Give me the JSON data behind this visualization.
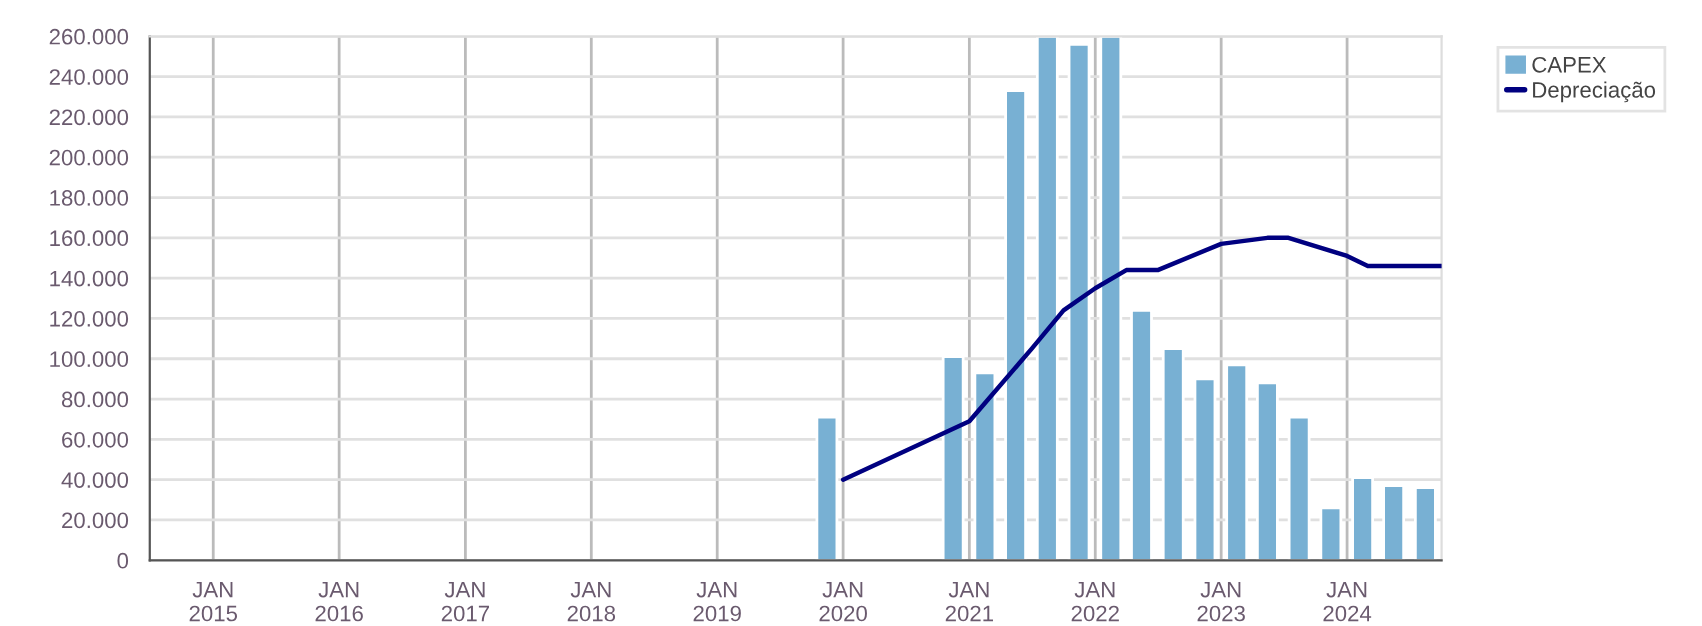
{
  "chart_data": {
    "type": "bar",
    "x": [
      "2019-11-15",
      "2020-11-15",
      "2021-02-15",
      "2021-05-15",
      "2021-08-15",
      "2021-11-15",
      "2022-02-15",
      "2022-05-15",
      "2022-08-15",
      "2022-11-15",
      "2023-02-15",
      "2023-05-15",
      "2023-08-15",
      "2023-11-15",
      "2024-02-15",
      "2024-05-15",
      "2024-08-15"
    ],
    "series": [
      {
        "name": "CAPEX",
        "color": "#78b0d3",
        "values": [
          71000,
          101000,
          93000,
          233000,
          260000,
          256000,
          260000,
          124000,
          105000,
          90000,
          97000,
          88000,
          71000,
          26000,
          41000,
          37000,
          36000
        ]
      },
      {
        "name": "Depreciação",
        "type": "line",
        "color": "#000080",
        "x": [
          "2020-01",
          "2021-01",
          "2021-07",
          "2021-10",
          "2022-01",
          "2022-04",
          "2022-07",
          "2023-01",
          "2023-05-15",
          "2023-07-15",
          "2024-01",
          "2024-03",
          "2024-10"
        ],
        "values": [
          40000,
          69000,
          105000,
          124000,
          135000,
          144000,
          144000,
          157000,
          160000,
          160000,
          151000,
          146000,
          146000
        ]
      }
    ],
    "xlim": [
      "2014-07-01",
      "2024-10-01"
    ],
    "xticks": [
      {
        "value": "2015-01-01",
        "label": "JAN\n2015"
      },
      {
        "value": "2016-01-01",
        "label": "JAN\n2016"
      },
      {
        "value": "2017-01-01",
        "label": "JAN\n2017"
      },
      {
        "value": "2018-01-01",
        "label": "JAN\n2018"
      },
      {
        "value": "2019-01-01",
        "label": "JAN\n2019"
      },
      {
        "value": "2020-01-01",
        "label": "JAN\n2020"
      },
      {
        "value": "2021-01-01",
        "label": "JAN\n2021"
      },
      {
        "value": "2022-01-01",
        "label": "JAN\n2022"
      },
      {
        "value": "2023-01-01",
        "label": "JAN\n2023"
      },
      {
        "value": "2024-01-01",
        "label": "JAN\n2024"
      }
    ],
    "ylim": [
      0,
      260000
    ],
    "yticks": [
      0,
      {
        "value": 20000,
        "label": "20.000"
      },
      {
        "value": 40000,
        "label": "40.000"
      },
      {
        "value": 60000,
        "label": "60.000"
      },
      {
        "value": 80000,
        "label": "80.000"
      },
      {
        "value": 100000,
        "label": "100.000"
      },
      {
        "value": 120000,
        "label": "120.000"
      },
      {
        "value": 140000,
        "label": "140.000"
      },
      {
        "value": 160000,
        "label": "160.000"
      },
      {
        "value": 180000,
        "label": "180.000"
      },
      {
        "value": 200000,
        "label": "200.000"
      },
      {
        "value": 220000,
        "label": "220.000"
      },
      {
        "value": 240000,
        "label": "240.000"
      },
      {
        "value": 260000,
        "label": "260.000"
      }
    ],
    "grid": true,
    "legend": "top right"
  }
}
